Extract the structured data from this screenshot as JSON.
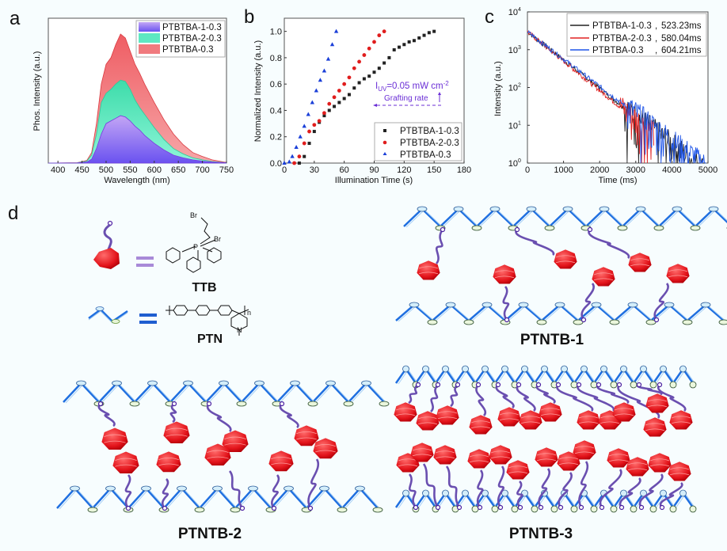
{
  "panels": {
    "a": "a",
    "b": "b",
    "c": "c",
    "d": "d"
  },
  "chart_data": [
    {
      "id": "a",
      "type": "area",
      "title": "",
      "xlabel": "Wavelength (nm)",
      "ylabel": "Phos. Intensity (a.u.)",
      "xlim": [
        380,
        750
      ],
      "ylim": [
        0,
        1.1
      ],
      "xticks": [
        400,
        450,
        500,
        550,
        600,
        650,
        700,
        750
      ],
      "legend_position": "top-right",
      "x": [
        380,
        440,
        460,
        470,
        480,
        490,
        500,
        510,
        520,
        530,
        540,
        550,
        560,
        570,
        580,
        600,
        620,
        640,
        660,
        680,
        700,
        720,
        750
      ],
      "series": [
        {
          "name": "PTBTBA-0.3",
          "color": "#f07a7e",
          "values": [
            0,
            0.003,
            0.02,
            0.08,
            0.3,
            0.6,
            0.75,
            0.8,
            0.9,
            0.98,
            0.95,
            0.85,
            0.75,
            0.68,
            0.6,
            0.46,
            0.33,
            0.22,
            0.14,
            0.08,
            0.05,
            0.025,
            0.005
          ]
        },
        {
          "name": "PTBTBA-2-0.3",
          "color": "#5ee8c2",
          "values": [
            0,
            0.002,
            0.015,
            0.06,
            0.22,
            0.46,
            0.53,
            0.56,
            0.6,
            0.63,
            0.62,
            0.56,
            0.48,
            0.42,
            0.37,
            0.27,
            0.18,
            0.11,
            0.07,
            0.04,
            0.025,
            0.012,
            0.003
          ]
        },
        {
          "name": "PTBTBA-1-0.3",
          "color": "#9b7cf0",
          "values": [
            0,
            0.001,
            0.008,
            0.03,
            0.11,
            0.22,
            0.3,
            0.32,
            0.34,
            0.36,
            0.35,
            0.32,
            0.28,
            0.25,
            0.21,
            0.15,
            0.1,
            0.06,
            0.04,
            0.025,
            0.015,
            0.008,
            0.002
          ]
        }
      ]
    },
    {
      "id": "b",
      "type": "scatter",
      "title": "",
      "xlabel": "Illumination Time (s)",
      "ylabel": "Normalized Intensity (a.u.)",
      "xlim": [
        0,
        180
      ],
      "ylim": [
        0,
        1.1
      ],
      "xticks": [
        0,
        30,
        60,
        90,
        120,
        150,
        180
      ],
      "yticks": [
        0.0,
        0.2,
        0.4,
        0.6,
        0.8,
        1.0
      ],
      "legend_position": "bottom-right",
      "annotation": {
        "line1": "I",
        "sub": "UV",
        "line1b": "=0.05 mW cm",
        "sup": "-2",
        "line2": "Grafting rate"
      },
      "series": [
        {
          "name": "PTBTBA-1-0.3",
          "marker": "square",
          "color": "#222222",
          "x": [
            15,
            20,
            25,
            30,
            35,
            40,
            45,
            50,
            55,
            60,
            65,
            70,
            75,
            80,
            85,
            90,
            95,
            100,
            105,
            110,
            115,
            120,
            125,
            130,
            135,
            140,
            145,
            150
          ],
          "values": [
            0.0,
            0.05,
            0.15,
            0.24,
            0.31,
            0.36,
            0.4,
            0.43,
            0.46,
            0.49,
            0.52,
            0.57,
            0.61,
            0.64,
            0.66,
            0.69,
            0.72,
            0.76,
            0.8,
            0.86,
            0.88,
            0.9,
            0.92,
            0.93,
            0.95,
            0.97,
            0.99,
            1.0
          ]
        },
        {
          "name": "PTBTBA-2-0.3",
          "marker": "circle",
          "color": "#e01d1d",
          "x": [
            10,
            15,
            20,
            25,
            30,
            35,
            40,
            45,
            50,
            55,
            60,
            65,
            70,
            75,
            80,
            85,
            90,
            95,
            100
          ],
          "values": [
            0.0,
            0.05,
            0.15,
            0.24,
            0.29,
            0.32,
            0.38,
            0.45,
            0.5,
            0.55,
            0.6,
            0.65,
            0.72,
            0.77,
            0.82,
            0.87,
            0.92,
            0.97,
            1.0
          ]
        },
        {
          "name": "PTBTBA-0.3",
          "marker": "triangle",
          "color": "#1a3fd8",
          "x": [
            0,
            5,
            8,
            12,
            16,
            20,
            24,
            28,
            32,
            36,
            40,
            44,
            48,
            52
          ],
          "values": [
            0.0,
            0.01,
            0.05,
            0.12,
            0.2,
            0.28,
            0.37,
            0.46,
            0.55,
            0.63,
            0.7,
            0.79,
            0.9,
            1.0
          ]
        }
      ]
    },
    {
      "id": "c",
      "type": "line",
      "title": "",
      "xlabel": "Time (ms)",
      "ylabel": "Intensity (a.u.)",
      "yscale": "log",
      "xlim": [
        0,
        5000
      ],
      "ylim": [
        1,
        10000
      ],
      "xticks": [
        0,
        1000,
        2000,
        3000,
        4000,
        5000
      ],
      "yticks": [
        "10^0",
        "10^1",
        "10^2",
        "10^3",
        "10^4"
      ],
      "legend_position": "top-right",
      "series": [
        {
          "name": "PTBTBA-1-0.3",
          "lifetime": "523.23ms",
          "color": "#222222",
          "y0": 3000,
          "decay_ms": 580,
          "cutoff": 4950
        },
        {
          "name": "PTBTBA-2-0.3",
          "lifetime": "580.04ms",
          "color": "#e02020",
          "y0": 3000,
          "decay_ms": 560,
          "cutoff": 3500
        },
        {
          "name": "PTBTBA-0.3",
          "lifetime": "604.21ms",
          "color": "#1f55e8",
          "y0": 3000,
          "decay_ms": 600,
          "cutoff": 4950
        }
      ]
    }
  ],
  "legend_c_sep": ",",
  "schematic": {
    "ttb_label": "TTB",
    "ptn_label": "PTN",
    "chem_br1": "Br",
    "chem_br2": "Br",
    "chem_p": "P",
    "chem_n": "N",
    "chem_n_sub": "n",
    "ptntb1_label": "PTNTB-1",
    "ptntb2_label": "PTNTB-2",
    "ptntb3_label": "PTNTB-3"
  }
}
